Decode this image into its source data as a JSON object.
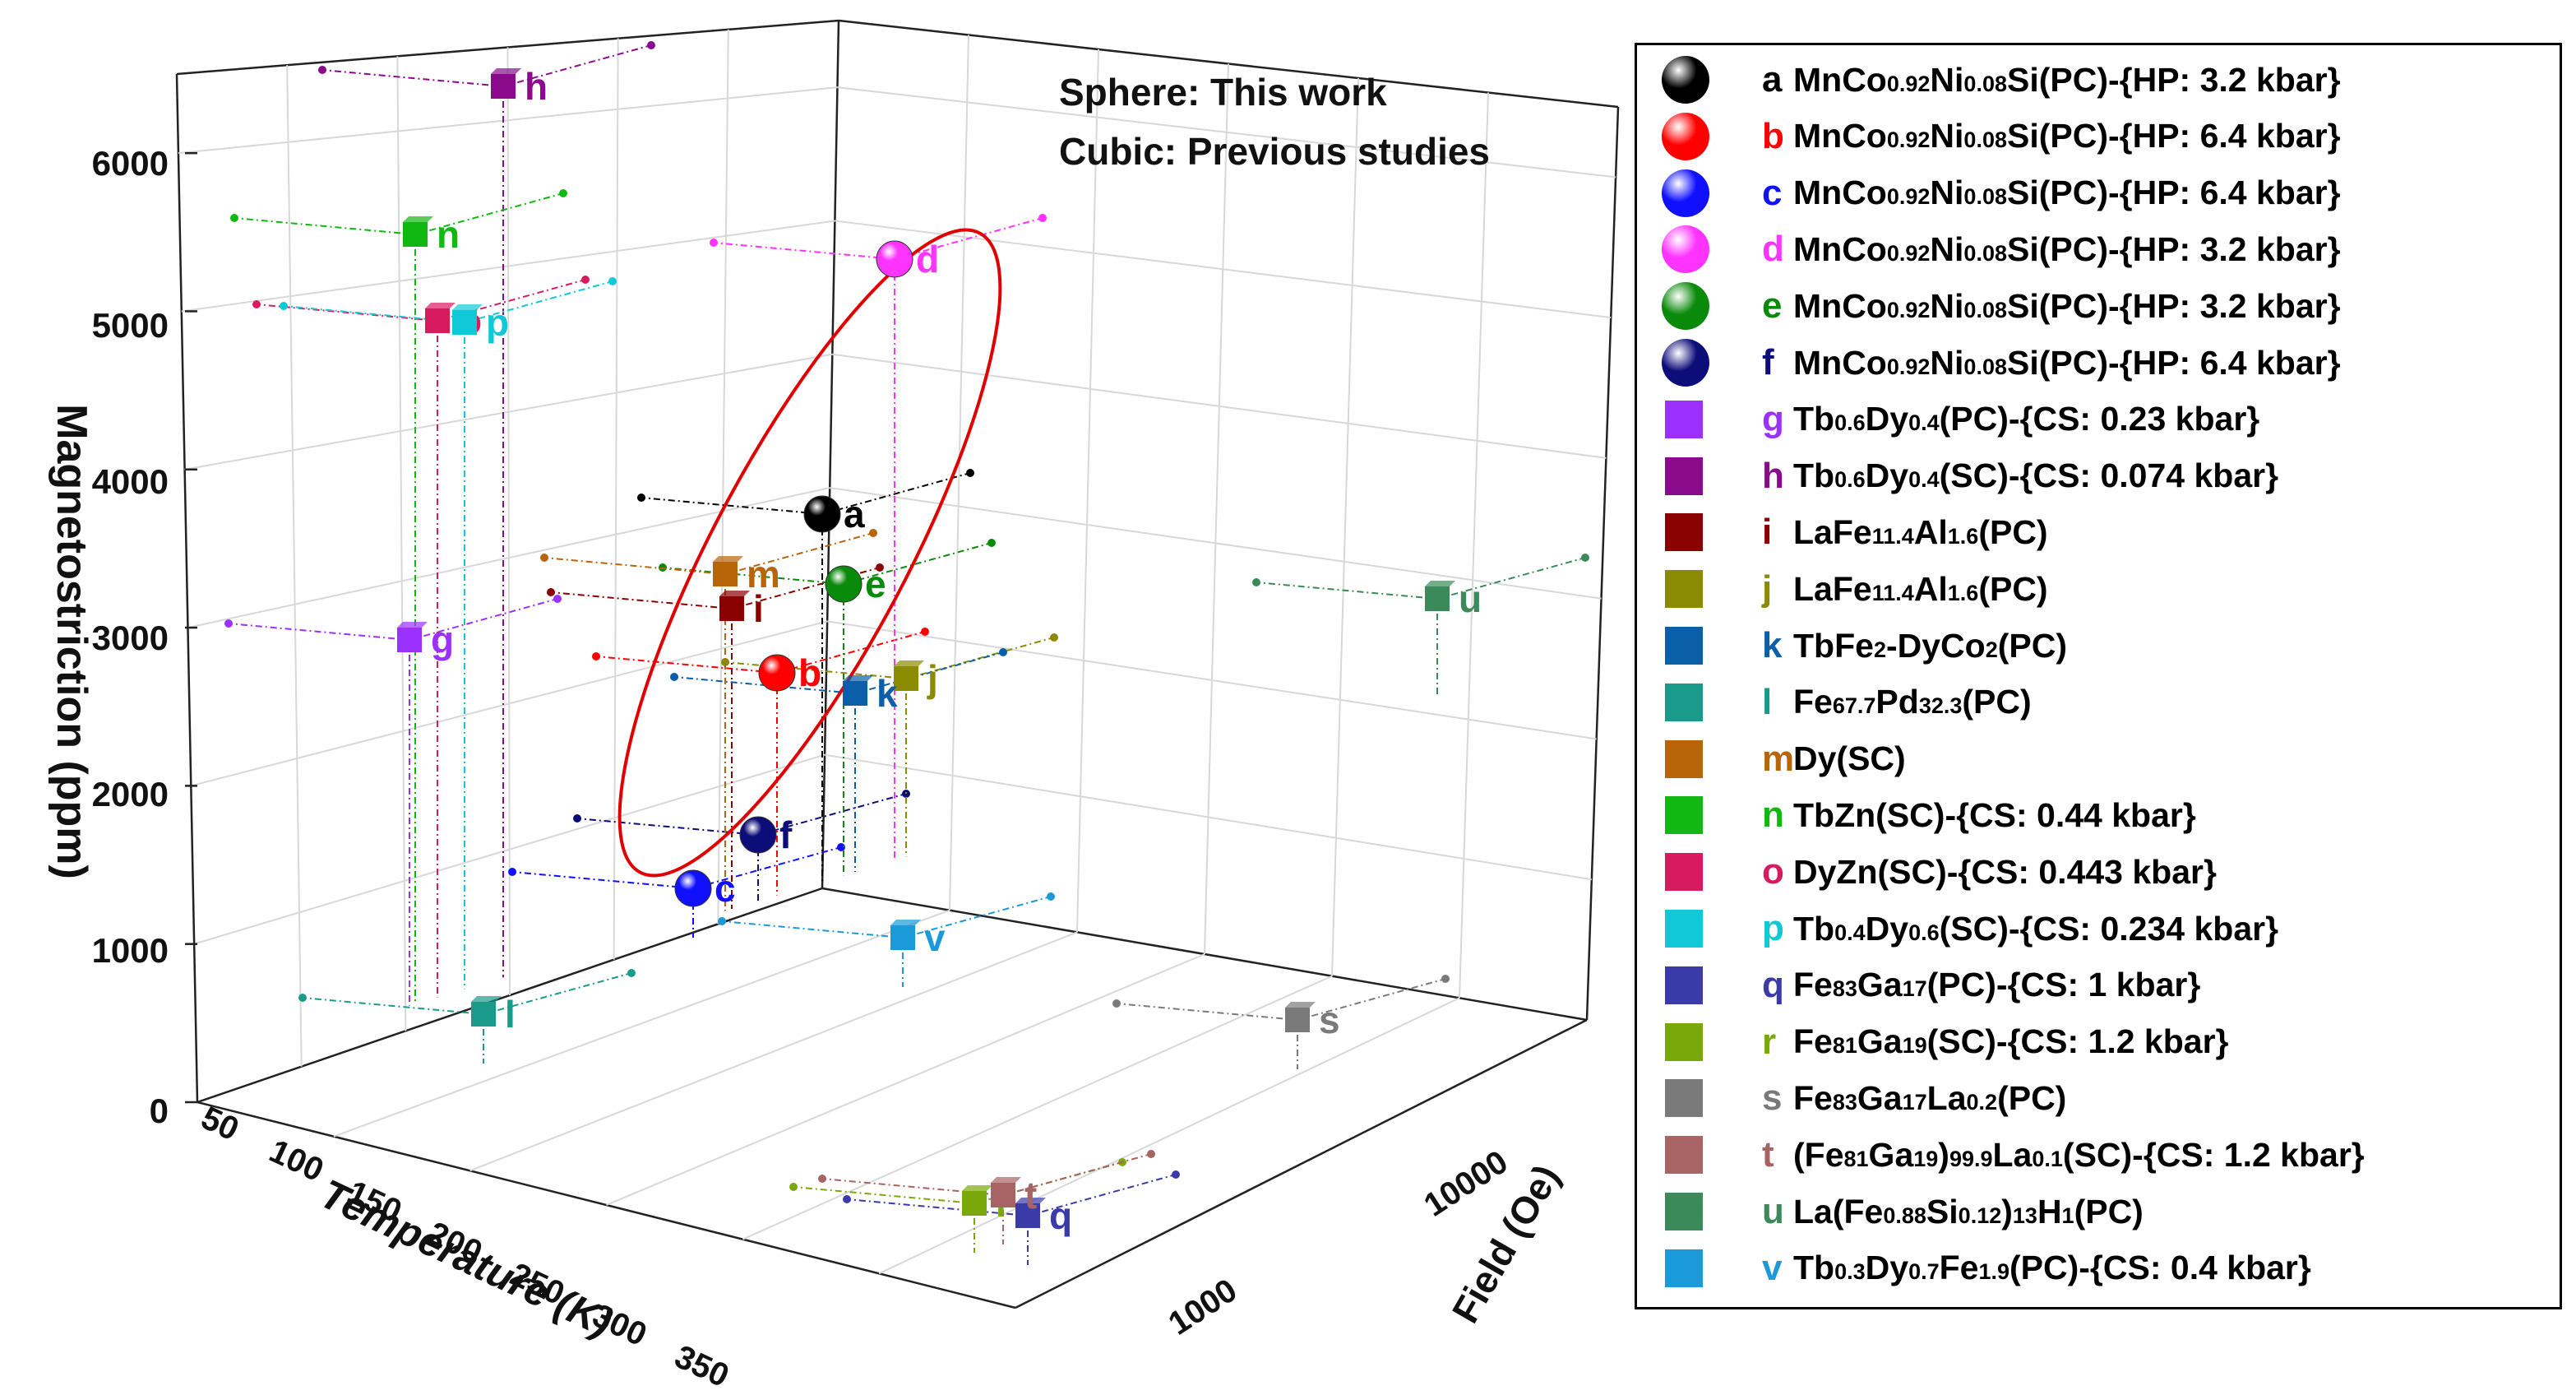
{
  "chart_data": {
    "type": "scatter3d",
    "title": "",
    "annotations": [
      "Sphere: This work",
      "Cubic: Previous studies"
    ],
    "axes": {
      "x": {
        "label": "Temperature (K)",
        "ticks": [
          "50",
          "100",
          "150",
          "200",
          "250",
          "300",
          "350"
        ],
        "range": [
          50,
          350
        ]
      },
      "y": {
        "label": "Field (Oe)",
        "ticks": [
          "1000",
          "10000"
        ],
        "scale": "log"
      },
      "z": {
        "label": "Magnetostriction (ppm)",
        "ticks": [
          "0",
          "1000",
          "2000",
          "3000",
          "4000",
          "5000",
          "6000"
        ],
        "range": [
          0,
          6500
        ]
      }
    },
    "points": [
      {
        "id": "a",
        "shape": "sphere",
        "color": "#000000",
        "label_color": "#000000",
        "magnetostriction": 3800
      },
      {
        "id": "b",
        "shape": "sphere",
        "color": "#ff0000",
        "label_color": "#ff0000",
        "magnetostriction": 2800
      },
      {
        "id": "c",
        "shape": "sphere",
        "color": "#1010ff",
        "label_color": "#1010ff",
        "magnetostriction": 1400
      },
      {
        "id": "d",
        "shape": "sphere",
        "color": "#ff33ff",
        "label_color": "#ff33ff",
        "magnetostriction": 5400
      },
      {
        "id": "e",
        "shape": "sphere",
        "color": "#0a8a0a",
        "label_color": "#0a8a0a",
        "magnetostriction": 3350
      },
      {
        "id": "f",
        "shape": "sphere",
        "color": "#0d0d7a",
        "label_color": "#0d0d7a",
        "magnetostriction": 1700
      },
      {
        "id": "g",
        "shape": "cube",
        "color": "#9b30ff",
        "label_color": "#9b30ff",
        "magnetostriction": 3000
      },
      {
        "id": "h",
        "shape": "cube",
        "color": "#8b0a8b",
        "label_color": "#8b0a8b",
        "magnetostriction": 6400
      },
      {
        "id": "i",
        "shape": "cube",
        "color": "#8b0000",
        "label_color": "#8b0000",
        "magnetostriction": 3200
      },
      {
        "id": "j",
        "shape": "cube",
        "color": "#8b8b00",
        "label_color": "#8b8b00",
        "magnetostriction": 2750
      },
      {
        "id": "k",
        "shape": "cube",
        "color": "#0a5fa8",
        "label_color": "#0a5fa8",
        "magnetostriction": 2650
      },
      {
        "id": "l",
        "shape": "cube",
        "color": "#1a9a8a",
        "label_color": "#1a9a8a",
        "magnetostriction": 600
      },
      {
        "id": "m",
        "shape": "cube",
        "color": "#b8650a",
        "label_color": "#b8650a",
        "magnetostriction": 3400
      },
      {
        "id": "n",
        "shape": "cube",
        "color": "#11b811",
        "label_color": "#11b811",
        "magnetostriction": 5500
      },
      {
        "id": "o",
        "shape": "cube",
        "color": "#d81b60",
        "label_color": "#d81b60",
        "magnetostriction": 5000
      },
      {
        "id": "p",
        "shape": "cube",
        "color": "#11c8d8",
        "label_color": "#11c8d8",
        "magnetostriction": 5000
      },
      {
        "id": "q",
        "shape": "cube",
        "color": "#3a3aa8",
        "label_color": "#3a3aa8",
        "magnetostriction": 0
      },
      {
        "id": "r",
        "shape": "cube",
        "color": "#7aa80a",
        "label_color": "#7aa80a",
        "magnetostriction": 0
      },
      {
        "id": "s",
        "shape": "cube",
        "color": "#7a7a7a",
        "label_color": "#7a7a7a",
        "magnetostriction": 600
      },
      {
        "id": "t",
        "shape": "cube",
        "color": "#a86464",
        "label_color": "#a86464",
        "magnetostriction": 0
      },
      {
        "id": "u",
        "shape": "cube",
        "color": "#3a8a5a",
        "label_color": "#3a8a5a",
        "magnetostriction": 3300
      },
      {
        "id": "v",
        "shape": "cube",
        "color": "#1a9ad8",
        "label_color": "#1a9ad8",
        "magnetostriction": 1100
      }
    ],
    "legend": [
      {
        "id": "a",
        "shape": "sphere",
        "color": "#000000",
        "letter_color": "#000000",
        "parts": [
          [
            "MnCo",
            ""
          ],
          [
            "0.92",
            "s"
          ],
          [
            "Ni",
            ""
          ],
          [
            "0.08",
            "s"
          ],
          [
            "Si(PC)-{HP: 3.2 kbar}",
            ""
          ]
        ]
      },
      {
        "id": "b",
        "shape": "sphere",
        "color": "#ff0000",
        "letter_color": "#ff0000",
        "parts": [
          [
            "MnCo",
            ""
          ],
          [
            "0.92",
            "s"
          ],
          [
            "Ni",
            ""
          ],
          [
            "0.08",
            "s"
          ],
          [
            "Si(PC)-{HP: 6.4 kbar}",
            ""
          ]
        ]
      },
      {
        "id": "c",
        "shape": "sphere",
        "color": "#1010ff",
        "letter_color": "#1010ff",
        "parts": [
          [
            "MnCo",
            ""
          ],
          [
            "0.92",
            "s"
          ],
          [
            "Ni",
            ""
          ],
          [
            "0.08",
            "s"
          ],
          [
            "Si(PC)-{HP: 6.4 kbar}",
            ""
          ]
        ]
      },
      {
        "id": "d",
        "shape": "sphere",
        "color": "#ff33ff",
        "letter_color": "#ff33ff",
        "parts": [
          [
            "MnCo",
            ""
          ],
          [
            "0.92",
            "s"
          ],
          [
            "Ni",
            ""
          ],
          [
            "0.08",
            "s"
          ],
          [
            "Si(PC)-{HP: 3.2 kbar}",
            ""
          ]
        ]
      },
      {
        "id": "e",
        "shape": "sphere",
        "color": "#0a8a0a",
        "letter_color": "#0a8a0a",
        "parts": [
          [
            "MnCo",
            ""
          ],
          [
            "0.92",
            "s"
          ],
          [
            "Ni",
            ""
          ],
          [
            "0.08",
            "s"
          ],
          [
            "Si(PC)-{HP: 3.2 kbar}",
            ""
          ]
        ]
      },
      {
        "id": "f",
        "shape": "sphere",
        "color": "#0d0d7a",
        "letter_color": "#0d0d7a",
        "parts": [
          [
            "MnCo",
            ""
          ],
          [
            "0.92",
            "s"
          ],
          [
            "Ni",
            ""
          ],
          [
            "0.08",
            "s"
          ],
          [
            "Si(PC)-{HP: 6.4 kbar}",
            ""
          ]
        ]
      },
      {
        "id": "g",
        "shape": "cube",
        "color": "#9b30ff",
        "letter_color": "#9b30ff",
        "parts": [
          [
            "Tb",
            ""
          ],
          [
            "0.6",
            "s"
          ],
          [
            "Dy",
            ""
          ],
          [
            "0.4",
            "s"
          ],
          [
            "(PC)-{CS: 0.23 kbar}",
            ""
          ]
        ]
      },
      {
        "id": "h",
        "shape": "cube",
        "color": "#8b0a8b",
        "letter_color": "#8b0a8b",
        "parts": [
          [
            "Tb",
            ""
          ],
          [
            "0.6",
            "s"
          ],
          [
            "Dy",
            ""
          ],
          [
            "0.4",
            "s"
          ],
          [
            "(SC)-{CS: 0.074 kbar}",
            ""
          ]
        ]
      },
      {
        "id": "i",
        "shape": "cube",
        "color": "#8b0000",
        "letter_color": "#8b0000",
        "parts": [
          [
            "LaFe",
            ""
          ],
          [
            "11.4",
            "s"
          ],
          [
            "Al",
            ""
          ],
          [
            "1.6",
            "s"
          ],
          [
            "(PC)",
            ""
          ]
        ]
      },
      {
        "id": "j",
        "shape": "cube",
        "color": "#8b8b00",
        "letter_color": "#8b8b00",
        "parts": [
          [
            "LaFe",
            ""
          ],
          [
            "11.4",
            "s"
          ],
          [
            "Al",
            ""
          ],
          [
            "1.6",
            "s"
          ],
          [
            "(PC)",
            ""
          ]
        ]
      },
      {
        "id": "k",
        "shape": "cube",
        "color": "#0a5fa8",
        "letter_color": "#0a5fa8",
        "parts": [
          [
            "TbFe",
            ""
          ],
          [
            "2",
            "s"
          ],
          [
            "-DyCo",
            ""
          ],
          [
            "2",
            "s"
          ],
          [
            "(PC)",
            ""
          ]
        ]
      },
      {
        "id": "l",
        "shape": "cube",
        "color": "#1a9a8a",
        "letter_color": "#1a9a8a",
        "parts": [
          [
            "Fe",
            ""
          ],
          [
            "67.7",
            "s"
          ],
          [
            "Pd",
            ""
          ],
          [
            "32.3",
            "s"
          ],
          [
            "(PC)",
            ""
          ]
        ]
      },
      {
        "id": "m",
        "shape": "cube",
        "color": "#b8650a",
        "letter_color": "#b8650a",
        "parts": [
          [
            "Dy(SC)",
            ""
          ]
        ]
      },
      {
        "id": "n",
        "shape": "cube",
        "color": "#11b811",
        "letter_color": "#11b811",
        "parts": [
          [
            "TbZn(SC)-{CS: 0.44 kbar}",
            ""
          ]
        ]
      },
      {
        "id": "o",
        "shape": "cube",
        "color": "#d81b60",
        "letter_color": "#d81b60",
        "parts": [
          [
            "DyZn(SC)-{CS: 0.443 kbar}",
            ""
          ]
        ]
      },
      {
        "id": "p",
        "shape": "cube",
        "color": "#11c8d8",
        "letter_color": "#11c8d8",
        "parts": [
          [
            "Tb",
            ""
          ],
          [
            "0.4",
            "s"
          ],
          [
            "Dy",
            ""
          ],
          [
            "0.6",
            "s"
          ],
          [
            "(SC)-{CS: 0.234 kbar}",
            ""
          ]
        ]
      },
      {
        "id": "q",
        "shape": "cube",
        "color": "#3a3aa8",
        "letter_color": "#3a3aa8",
        "parts": [
          [
            "Fe",
            ""
          ],
          [
            "83",
            "s"
          ],
          [
            "Ga",
            ""
          ],
          [
            "17",
            "s"
          ],
          [
            "(PC)-{CS: 1 kbar}",
            ""
          ]
        ]
      },
      {
        "id": "r",
        "shape": "cube",
        "color": "#7aa80a",
        "letter_color": "#7aa80a",
        "parts": [
          [
            "Fe",
            ""
          ],
          [
            "81",
            "s"
          ],
          [
            "Ga",
            ""
          ],
          [
            "19",
            "s"
          ],
          [
            "(SC)-{CS: 1.2 kbar}",
            ""
          ]
        ]
      },
      {
        "id": "s",
        "shape": "cube",
        "color": "#7a7a7a",
        "letter_color": "#7a7a7a",
        "parts": [
          [
            "Fe",
            ""
          ],
          [
            "83",
            "s"
          ],
          [
            "Ga",
            ""
          ],
          [
            "17",
            "s"
          ],
          [
            "La",
            ""
          ],
          [
            "0.2",
            "s"
          ],
          [
            "(PC)",
            ""
          ]
        ]
      },
      {
        "id": "t",
        "shape": "cube",
        "color": "#a86464",
        "letter_color": "#a86464",
        "parts": [
          [
            "(Fe",
            ""
          ],
          [
            "81",
            "s"
          ],
          [
            "Ga",
            ""
          ],
          [
            "19",
            "s"
          ],
          [
            ")",
            ""
          ],
          [
            "99.9",
            "s"
          ],
          [
            "La",
            ""
          ],
          [
            "0.1",
            "s"
          ],
          [
            "(SC)-{CS: 1.2 kbar}",
            ""
          ]
        ]
      },
      {
        "id": "u",
        "shape": "cube",
        "color": "#3a8a5a",
        "letter_color": "#3a8a5a",
        "parts": [
          [
            "La(Fe",
            ""
          ],
          [
            "0.88",
            "s"
          ],
          [
            "Si",
            ""
          ],
          [
            "0.12",
            "s"
          ],
          [
            ")",
            ""
          ],
          [
            "13",
            "s"
          ],
          [
            "H",
            ""
          ],
          [
            "1",
            "s"
          ],
          [
            "(PC)",
            ""
          ]
        ]
      },
      {
        "id": "v",
        "shape": "cube",
        "color": "#1a9ad8",
        "letter_color": "#1a9ad8",
        "parts": [
          [
            "Tb",
            ""
          ],
          [
            "0.3",
            "s"
          ],
          [
            "Dy",
            ""
          ],
          [
            "0.7",
            "s"
          ],
          [
            "Fe",
            ""
          ],
          [
            "1.9",
            "s"
          ],
          [
            "(PC)-{CS: 0.4 kbar}",
            ""
          ]
        ]
      }
    ]
  }
}
